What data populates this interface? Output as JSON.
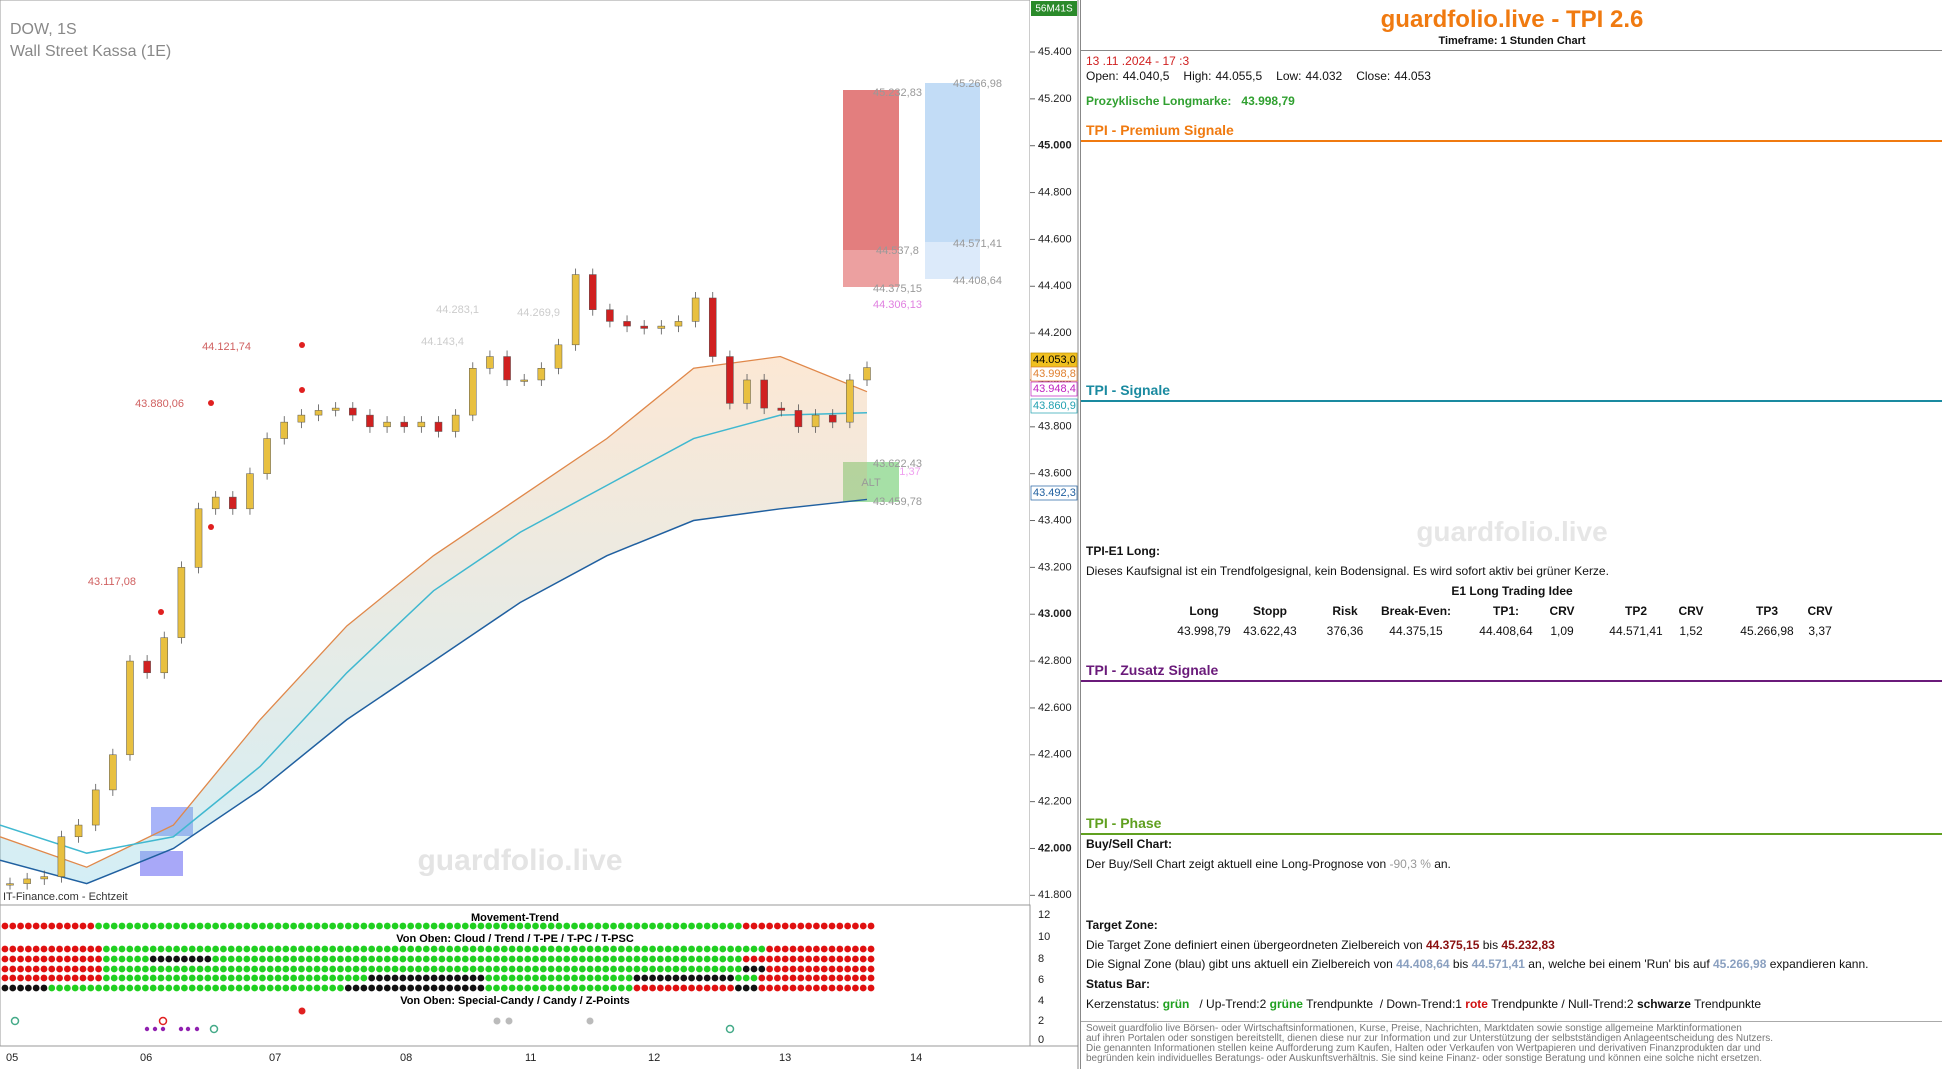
{
  "chart": {
    "symbol": "DOW, 1S",
    "name": "Wall Street Kassa (1E)",
    "timer": "56M41S",
    "watermark": "guardfolio.live",
    "source": "IT-Finance.com - Echtzeit",
    "ylim": [
      41763,
      45622
    ],
    "yticks": [
      {
        "value": 45400,
        "label": "45.400"
      },
      {
        "value": 45200,
        "label": "45.200"
      },
      {
        "value": 45000,
        "label": "45.000"
      },
      {
        "value": 44800,
        "label": "44.800"
      },
      {
        "value": 44600,
        "label": "44.600"
      },
      {
        "value": 44400,
        "label": "44.400"
      },
      {
        "value": 44200,
        "label": "44.200"
      },
      {
        "value": 44000,
        "label": "44.000"
      },
      {
        "value": 43800,
        "label": "43.800"
      },
      {
        "value": 43600,
        "label": "43.600"
      },
      {
        "value": 43400,
        "label": "43.400"
      },
      {
        "value": 43200,
        "label": "43.200"
      },
      {
        "value": 43000,
        "label": "43.000"
      },
      {
        "value": 42800,
        "label": "42.800"
      },
      {
        "value": 42600,
        "label": "42.600"
      },
      {
        "value": 42400,
        "label": "42.400"
      },
      {
        "value": 42200,
        "label": "42.200"
      },
      {
        "value": 42000,
        "label": "42.000"
      },
      {
        "value": 41800,
        "label": "41.800"
      }
    ],
    "xticks": [
      "05",
      "06",
      "07",
      "08",
      "11",
      "12",
      "13",
      "14"
    ],
    "closes": [
      41850,
      41870,
      41880,
      42050,
      42100,
      42250,
      42400,
      42800,
      42750,
      42900,
      43200,
      43450,
      43500,
      43450,
      43600,
      43750,
      43820,
      43850,
      43870,
      43880,
      43850,
      43800,
      43820,
      43800,
      43820,
      43780,
      43850,
      44050,
      44100,
      44000,
      44000,
      44050,
      44150,
      44450,
      44300,
      44250,
      44230,
      44220,
      44230,
      44250,
      44350,
      44100,
      43900,
      44000,
      43880,
      43870,
      43800,
      43850,
      43820,
      44000,
      44053
    ],
    "bands": {
      "orange": [
        42050,
        41920,
        42100,
        42550,
        42950,
        43250,
        43500,
        43750,
        44050,
        44100,
        43950
      ],
      "cyan": [
        42100,
        41980,
        42050,
        42350,
        42750,
        43100,
        43350,
        43550,
        43750,
        43850,
        43860
      ],
      "blue": [
        41950,
        41850,
        42000,
        42250,
        42550,
        42800,
        43050,
        43250,
        43400,
        43450,
        43490
      ]
    },
    "levels": [
      "44.121,74",
      "43.880,06",
      "43.117,08",
      "45.232,83",
      "44.537,8",
      "44.375,15",
      "44.306,13",
      "45.266,98",
      "44.571,41",
      "44.408,64",
      "43.622,43",
      "43.459,78",
      "44.283,1",
      "44.269,9",
      "44.143,4",
      "ALT",
      "1,37"
    ],
    "price_tags": [
      "44.053,0",
      "43.998,8",
      "43.948,4",
      "43.860,9",
      "43.492,3"
    ]
  },
  "indicator": {
    "title": "Movement-Trend",
    "subtitle1": "Von Oben: Cloud / Trend / T-PE / T-PC / T-PSC",
    "subtitle2": "Von Oben: Special-Candy / Candy / Z-Points",
    "yticks": [
      12,
      10,
      8,
      6,
      4,
      2,
      0
    ]
  },
  "panel": {
    "title": "guardfolio.live - TPI 2.6",
    "timeframe": "Timeframe: 1 Stunden Chart",
    "date": "13 .11 .2024 - 17 :3",
    "ohlc": [
      [
        "Open:",
        "44.040,5"
      ],
      [
        "High:",
        "44.055,5"
      ],
      [
        "Low:",
        "44.032"
      ],
      [
        "Close:",
        "44.053"
      ]
    ],
    "longmark": [
      "Prozyklische Longmarke:",
      "43.998,79"
    ],
    "premium": "TPI - Premium Signale",
    "signale": "TPI - Signale",
    "watermark": "guardfolio.live",
    "e1_title": "TPI-E1 Long:",
    "e1_text": "Dieses Kaufsignal ist ein Trendfolgesignal, kein Bodensignal. Es wird sofort aktiv bei grüner Kerze.",
    "e1_idea": "E1 Long Trading Idee",
    "table": {
      "header": [
        "Long",
        "Stopp",
        "Risk",
        "Break-Even:",
        "TP1:",
        "CRV",
        "TP2",
        "CRV",
        "TP3",
        "CRV"
      ],
      "values": [
        "43.998,79",
        "43.622,43",
        "376,36",
        "44.375,15",
        "44.408,64",
        "1,09",
        "44.571,41",
        "1,52",
        "45.266,98",
        "3,37"
      ]
    },
    "zusatz": "TPI - Zusatz Signale",
    "phase": "TPI - Phase",
    "buysell_title": "Buy/Sell Chart:",
    "buysell": [
      "Der Buy/Sell Chart zeigt aktuell eine Long-Prognose von ",
      "-90,3 %",
      " an."
    ],
    "target_title": "Target Zone:",
    "target": [
      "Die Target Zone definiert einen übergeordneten Zielbereich von ",
      "44.375,15",
      " bis ",
      "45.232,83"
    ],
    "signal": [
      "Die Signal Zone (blau) gibt uns aktuell ein Zielbereich von ",
      "44.408,64",
      " bis ",
      "44.571,41",
      " an, welche bei einem 'Run' bis auf ",
      "45.266,98",
      " expandieren kann."
    ],
    "status_title": "Status Bar:",
    "status": [
      "Kerzenstatus: ",
      "grün",
      "   / Up-Trend:2 ",
      "grüne",
      " Trendpunkte  / Down-Trend:1 ",
      "rote",
      " Trendpunkte / Null-Trend:2 ",
      "schwarze",
      " Trendpunkte"
    ],
    "disclaimer": [
      "Soweit guardfolio live Börsen- oder Wirtschaftsinformationen, Kurse, Preise, Nachrichten, Marktdaten sowie sonstige allgemeine Marktinformationen",
      "auf ihren Portalen oder sonstigen bereitstellt, dienen diese nur zur Information und zur Unterstützung der selbstständigen Anlageentscheidung des Nutzers.",
      "Die genannten Informationen stellen keine Aufforderung zum Kaufen, Halten oder Verkaufen von Wertpapieren und derivativen Finanzprodukten dar und",
      "begründen kein individuelles Beratungs- oder Auskunftsverhältnis. Sie sind keine Finanz- oder sonstige Beratung und können eine solche nicht ersetzen."
    ]
  }
}
